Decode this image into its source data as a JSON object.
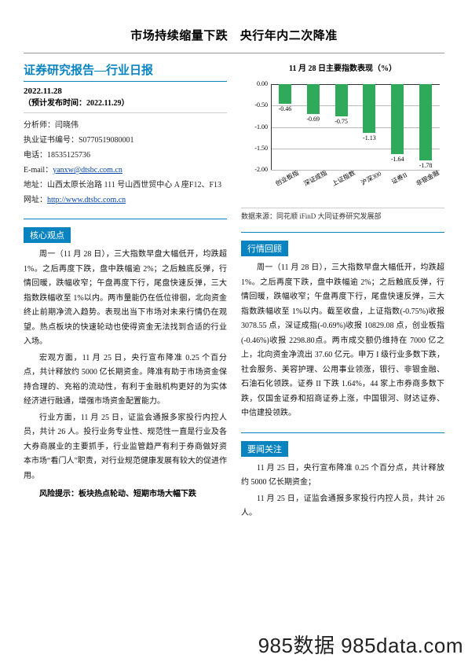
{
  "title": "市场持续缩量下跌　央行年内二次降准",
  "report_type": "证券研究报告—行业日报",
  "date": "2022.11.28",
  "expected": "（预计发布时间：2022.11.29）",
  "analyst": {
    "name_label": "分析师：闫晓伟",
    "license": "执业证书编号：S0770519080001",
    "phone": "电话：18535125736",
    "email_label": "E-mail：",
    "email": "yanxw@dtsbc.com.cn",
    "address": "地址：山西太原长治路 111 号山西世贸中心 A 座F12、F13",
    "web_label": "网址：",
    "web": "http://www.dtsbc.com.cn"
  },
  "sections": {
    "core": "核心观点",
    "review": "行情回顾",
    "focus": "要闻关注"
  },
  "core_paragraphs": [
    "周一（11 月 28 日），三大指数早盘大幅低开，均跌超 1%。之后再度下跌，盘中跌幅逾 2%；之后触底反弹，行情回暖，跌幅收窄；午盘再度下行，尾盘快速反弹，三大指数跌幅收至 1%以内。两市量能仍在低位徘徊，北向资金终止前期净流入趋势。表现出当下市场对未来行情仍在观望。热点板块的快速轮动也使得资金无法找到合适的行业入场。",
    "宏观方面，11 月 25 日，央行宣布降准 0.25 个百分点，共计释放约 5000 亿长期资金。降准有助于市场资金保持合理的、充裕的流动性，有利于金融机构更好的为实体经济进行融通，增强市场资金配置能力。",
    "行业方面，11 月 25 日，证监会通报多家投行内控人员，共计 26 人。投行业务专业性、规范性一直是行业及各大券商展业的主要抓手，行业监管趋严有利于券商做好资本市场“看门人”职责，对行业规范健康发展有较大的促进作用。"
  ],
  "risk": "风险提示：板块热点轮动、短期市场大幅下跌",
  "review_paragraphs": [
    "周一（11 月 28 日），三大指数早盘大幅低开，均跌超 1%。之后再度下跌，盘中跌幅逾 2%；之后触底反弹，行情回暖，跌幅收窄；午盘再度下行，尾盘快速反弹，三大指数跌幅收至 1%以内。截至收盘，上证指数(-0.75%)收报 3078.55 点，深证成指(-0.69%)收报 10829.08 点，创业板指(-0.46%)收报 2298.80点。两市成交额仍维持在 7000 亿之上，北向资金净流出 37.60 亿元。申万 I 级行业多数下跌，社会服务、美容护理、公用事业领涨，银行、非银金融、石油石化领跌。证券 II 下跌 1.64%，44 家上市券商多数下跌，仅国金证券和招商证券上涨，中国银河、财达证券、中信建投领跌。"
  ],
  "focus_paragraphs": [
    "11 月 25 日，央行宣布降准 0.25 个百分点，共计释放约 5000 亿长期资金；",
    "11 月 25 日，证监会通报多家投行内控人员，共计 26 人。"
  ],
  "chart": {
    "title": "11 月 28 日主要指数表现（%）",
    "type": "bar",
    "ylim": [
      -2.0,
      0.0
    ],
    "ytick_step": 0.5,
    "yticks": [
      "0.00",
      "-0.50",
      "-1.00",
      "-1.50",
      "-2.00"
    ],
    "categories": [
      "创业板指",
      "深证成指",
      "上证指数",
      "沪深300",
      "证券II",
      "非银金融"
    ],
    "values": [
      -0.46,
      -0.69,
      -0.75,
      -1.13,
      -1.64,
      -1.78
    ],
    "bar_color": "#2faa5a",
    "grid_color": "#bbbbbb",
    "text_color": "#222222",
    "background_color": "#ffffff",
    "label_fontsize": 8,
    "source": "数据来源：同花顺 iFinD 大同证券研究发展部"
  },
  "watermark": "985数据 985data.com"
}
